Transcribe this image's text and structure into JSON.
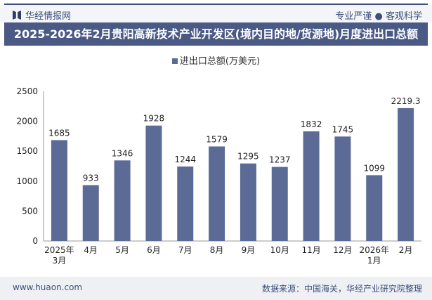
{
  "header": {
    "brand": "华经情报网",
    "slogan": "专业严谨 ● 客观科学"
  },
  "title": "2025-2026年2月贵阳高新技术产业开发区(境内目的地/货源地)月度进出口总额",
  "footer": {
    "url": "www.huaon.com",
    "source": "数据来源：中国海关，华经产业研究院整理"
  },
  "colors": {
    "bar": "#5b6b95",
    "title_bar": "#4a5a85"
  },
  "chart_data": {
    "type": "bar",
    "title": "2025-2026年2月贵阳高新技术产业开发区(境内目的地/货源地)月度进出口总额",
    "categories": [
      "2025年\n3月",
      "4月",
      "5月",
      "6月",
      "7月",
      "8月",
      "9月",
      "10月",
      "11月",
      "12月",
      "2026年\n1月",
      "2月"
    ],
    "series": [
      {
        "name": "进出口总额(万美元)",
        "values": [
          1685,
          933,
          1346,
          1928,
          1244,
          1579,
          1295,
          1237,
          1832,
          1745,
          1099,
          2219.3
        ]
      }
    ],
    "data_labels": [
      "1685",
      "933",
      "1346",
      "1928",
      "1244",
      "1579",
      "1295",
      "1237",
      "1832",
      "1745",
      "1099",
      "2219.3"
    ],
    "ylim": [
      0,
      2500
    ],
    "yticks": [
      0,
      500,
      1000,
      1500,
      2000,
      2500
    ],
    "grid": false,
    "legend": "top-center"
  }
}
